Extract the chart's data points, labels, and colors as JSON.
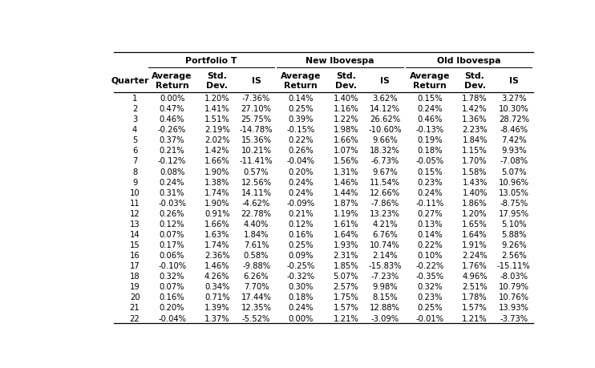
{
  "quarters": [
    1,
    2,
    3,
    4,
    5,
    6,
    7,
    8,
    9,
    10,
    11,
    12,
    13,
    14,
    15,
    16,
    17,
    18,
    19,
    20,
    21,
    22
  ],
  "portfolio_T": [
    [
      "0.00%",
      "1.20%",
      "-7.36%"
    ],
    [
      "0.47%",
      "1.41%",
      "27.10%"
    ],
    [
      "0.46%",
      "1.51%",
      "25.75%"
    ],
    [
      "-0.26%",
      "2.19%",
      "-14.78%"
    ],
    [
      "0.37%",
      "2.02%",
      "15.36%"
    ],
    [
      "0.21%",
      "1.42%",
      "10.21%"
    ],
    [
      "-0.12%",
      "1.66%",
      "-11.41%"
    ],
    [
      "0.08%",
      "1.90%",
      "0.57%"
    ],
    [
      "0.24%",
      "1.38%",
      "12.56%"
    ],
    [
      "0.31%",
      "1.74%",
      "14.11%"
    ],
    [
      "-0.03%",
      "1.90%",
      "-4.62%"
    ],
    [
      "0.26%",
      "0.91%",
      "22.78%"
    ],
    [
      "0.12%",
      "1.66%",
      "4.40%"
    ],
    [
      "0.07%",
      "1.63%",
      "1.84%"
    ],
    [
      "0.17%",
      "1.74%",
      "7.61%"
    ],
    [
      "0.06%",
      "2.36%",
      "0.58%"
    ],
    [
      "-0.10%",
      "1.46%",
      "-9.88%"
    ],
    [
      "0.32%",
      "4.26%",
      "6.26%"
    ],
    [
      "0.07%",
      "0.34%",
      "7.70%"
    ],
    [
      "0.16%",
      "0.71%",
      "17.44%"
    ],
    [
      "0.20%",
      "1.39%",
      "12.35%"
    ],
    [
      "-0.04%",
      "1.37%",
      "-5.52%"
    ]
  ],
  "new_ibovespa": [
    [
      "0.14%",
      "1.40%",
      "3.62%"
    ],
    [
      "0.25%",
      "1.16%",
      "14.12%"
    ],
    [
      "0.39%",
      "1.22%",
      "26.62%"
    ],
    [
      "-0.15%",
      "1.98%",
      "-10.60%"
    ],
    [
      "0.22%",
      "1.66%",
      "9.66%"
    ],
    [
      "0.26%",
      "1.07%",
      "18.32%"
    ],
    [
      "-0.04%",
      "1.56%",
      "-6.73%"
    ],
    [
      "0.20%",
      "1.31%",
      "9.67%"
    ],
    [
      "0.24%",
      "1.46%",
      "11.54%"
    ],
    [
      "0.24%",
      "1.44%",
      "12.66%"
    ],
    [
      "-0.09%",
      "1.87%",
      "-7.86%"
    ],
    [
      "0.21%",
      "1.19%",
      "13.23%"
    ],
    [
      "0.12%",
      "1.61%",
      "4.21%"
    ],
    [
      "0.16%",
      "1.64%",
      "6.76%"
    ],
    [
      "0.25%",
      "1.93%",
      "10.74%"
    ],
    [
      "0.09%",
      "2.31%",
      "2.14%"
    ],
    [
      "-0.25%",
      "1.85%",
      "-15.83%"
    ],
    [
      "-0.32%",
      "5.07%",
      "-7.23%"
    ],
    [
      "0.30%",
      "2.57%",
      "9.98%"
    ],
    [
      "0.18%",
      "1.75%",
      "8.15%"
    ],
    [
      "0.24%",
      "1.57%",
      "12.88%"
    ],
    [
      "0.00%",
      "1.21%",
      "-3.09%"
    ]
  ],
  "old_ibovespa": [
    [
      "0.15%",
      "1.78%",
      "3.27%"
    ],
    [
      "0.24%",
      "1.42%",
      "10.30%"
    ],
    [
      "0.46%",
      "1.36%",
      "28.72%"
    ],
    [
      "-0.13%",
      "2.23%",
      "-8.46%"
    ],
    [
      "0.19%",
      "1.84%",
      "7.42%"
    ],
    [
      "0.18%",
      "1.15%",
      "9.93%"
    ],
    [
      "-0.05%",
      "1.70%",
      "-7.08%"
    ],
    [
      "0.15%",
      "1.58%",
      "5.07%"
    ],
    [
      "0.23%",
      "1.43%",
      "10.96%"
    ],
    [
      "0.24%",
      "1.40%",
      "13.05%"
    ],
    [
      "-0.11%",
      "1.86%",
      "-8.75%"
    ],
    [
      "0.27%",
      "1.20%",
      "17.95%"
    ],
    [
      "0.13%",
      "1.65%",
      "5.10%"
    ],
    [
      "0.14%",
      "1.64%",
      "5.88%"
    ],
    [
      "0.22%",
      "1.91%",
      "9.26%"
    ],
    [
      "0.10%",
      "2.24%",
      "2.56%"
    ],
    [
      "-0.22%",
      "1.76%",
      "-15.11%"
    ],
    [
      "-0.35%",
      "4.96%",
      "-8.03%"
    ],
    [
      "0.32%",
      "2.51%",
      "10.79%"
    ],
    [
      "0.23%",
      "1.78%",
      "10.76%"
    ],
    [
      "0.25%",
      "1.57%",
      "13.93%"
    ],
    [
      "-0.01%",
      "1.21%",
      "-3.73%"
    ]
  ],
  "col_headers_line1": [
    "Average",
    "Std.",
    "IS"
  ],
  "col_headers_line2": [
    "Return",
    "Dev.",
    ""
  ],
  "group_headers": [
    "Portfolio T",
    "New Ibovespa",
    "Old Ibovespa"
  ],
  "row_header": "Quarter",
  "bg_color": "#ffffff",
  "text_color": "#000000",
  "font_size": 7.2,
  "header_font_size": 7.8
}
